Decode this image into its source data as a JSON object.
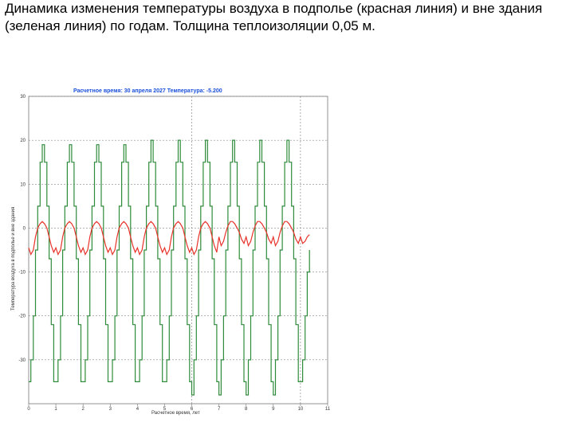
{
  "slide": {
    "title": "Динамика изменения температуры воздуха в подполье (красная линия) и вне здания (зеленая линия) по годам. Толщина теплоизоляции 0,05 м."
  },
  "chart_data": {
    "type": "line",
    "runtime_label": "Расчетное время: 30 апреля 2027  Температура: -5.200",
    "xlabel": "Расчетное время, лет",
    "ylabel": "Температура воздуха в подполье и вне здания",
    "xlim": [
      0,
      11
    ],
    "ylim": [
      -40,
      30
    ],
    "x_ticks": [
      "0",
      "1",
      "2",
      "3",
      "4",
      "5",
      "6",
      "7",
      "8",
      "9",
      "10",
      "11"
    ],
    "y_ticks": [
      "30",
      "20",
      "10",
      "0",
      "-10",
      "-20",
      "-30"
    ],
    "cursor_x": [
      6,
      10
    ],
    "colors": {
      "underground": "#e8332b",
      "outside": "#2e8b3a",
      "runtime": "#1a4fd8",
      "grid": "#888888"
    },
    "series": [
      {
        "name": "Температура воздуха в подполье",
        "color": "#e8332b",
        "x": [
          0,
          0.08,
          0.17,
          0.25,
          0.33,
          0.42,
          0.5,
          0.58,
          0.67,
          0.75,
          0.83,
          0.92,
          1,
          1.08,
          1.17,
          1.25,
          1.33,
          1.42,
          1.5,
          1.58,
          1.67,
          1.75,
          1.83,
          1.92,
          2,
          2.08,
          2.17,
          2.25,
          2.33,
          2.42,
          2.5,
          2.58,
          2.67,
          2.75,
          2.83,
          2.92,
          3,
          3.08,
          3.17,
          3.25,
          3.33,
          3.42,
          3.5,
          3.58,
          3.67,
          3.75,
          3.83,
          3.92,
          4,
          4.08,
          4.17,
          4.25,
          4.33,
          4.42,
          4.5,
          4.58,
          4.67,
          4.75,
          4.83,
          4.92,
          5,
          5.08,
          5.17,
          5.25,
          5.33,
          5.42,
          5.5,
          5.58,
          5.67,
          5.75,
          5.83,
          5.92,
          6,
          6.08,
          6.17,
          6.25,
          6.33,
          6.42,
          6.5,
          6.58,
          6.67,
          6.75,
          6.83,
          6.92,
          7,
          7.08,
          7.17,
          7.25,
          7.33,
          7.42,
          7.5,
          7.58,
          7.67,
          7.75,
          7.83,
          7.92,
          8,
          8.08,
          8.17,
          8.25,
          8.33,
          8.42,
          8.5,
          8.58,
          8.67,
          8.75,
          8.83,
          8.92,
          9,
          9.08,
          9.17,
          9.25,
          9.33,
          9.42,
          9.5,
          9.58,
          9.67,
          9.75,
          9.83,
          9.92,
          10,
          10.08,
          10.17,
          10.25,
          10.33
        ],
        "y": [
          -4.5,
          -6,
          -5,
          -2,
          0,
          1,
          1.5,
          1,
          0,
          -2,
          -4,
          -5.5,
          -4.5,
          -6,
          -5,
          -2,
          0,
          1,
          1.5,
          1,
          0,
          -2,
          -4,
          -5.5,
          -4.5,
          -6,
          -5,
          -2,
          0,
          1,
          1.5,
          1,
          0,
          -2,
          -4,
          -5.5,
          -4.5,
          -6,
          -5,
          -2,
          0,
          1,
          1.5,
          1,
          0,
          -2,
          -4,
          -5.5,
          -4.5,
          -6,
          -5,
          -2,
          0,
          1,
          1.5,
          1,
          0,
          -2,
          -4,
          -5.5,
          -4.5,
          -6,
          -5,
          -2,
          0,
          1,
          1.5,
          1,
          0,
          -2,
          -4,
          -5.5,
          -4.5,
          -6,
          -5,
          -2,
          0,
          1,
          1.5,
          1,
          0,
          -2,
          -4,
          -5.5,
          -2,
          -4,
          -3,
          -1,
          0.5,
          1.5,
          1.5,
          1,
          0,
          -1,
          -2.5,
          -3.5,
          -2,
          -4,
          -3,
          -1,
          0.5,
          1.5,
          1.5,
          1,
          0,
          -1,
          -2.5,
          -3.5,
          -2,
          -4,
          -3,
          -1,
          0.5,
          1.5,
          1.5,
          1,
          0,
          -1,
          -2.5,
          -3.5,
          -2,
          -3.5,
          -3,
          -2,
          -1.5
        ]
      },
      {
        "name": "Температура воздуха вне здания",
        "color": "#2e8b3a",
        "x": [
          0,
          0.08,
          0.17,
          0.25,
          0.33,
          0.42,
          0.5,
          0.58,
          0.67,
          0.75,
          0.83,
          0.92,
          1,
          1.08,
          1.17,
          1.25,
          1.33,
          1.42,
          1.5,
          1.58,
          1.67,
          1.75,
          1.83,
          1.92,
          2,
          2.08,
          2.17,
          2.25,
          2.33,
          2.42,
          2.5,
          2.58,
          2.67,
          2.75,
          2.83,
          2.92,
          3,
          3.08,
          3.17,
          3.25,
          3.33,
          3.42,
          3.5,
          3.58,
          3.67,
          3.75,
          3.83,
          3.92,
          4,
          4.08,
          4.17,
          4.25,
          4.33,
          4.42,
          4.5,
          4.58,
          4.67,
          4.75,
          4.83,
          4.92,
          5,
          5.08,
          5.17,
          5.25,
          5.33,
          5.42,
          5.5,
          5.58,
          5.67,
          5.75,
          5.83,
          5.92,
          6,
          6.08,
          6.17,
          6.25,
          6.33,
          6.42,
          6.5,
          6.58,
          6.67,
          6.75,
          6.83,
          6.92,
          7,
          7.08,
          7.17,
          7.25,
          7.33,
          7.42,
          7.5,
          7.58,
          7.67,
          7.75,
          7.83,
          7.92,
          8,
          8.08,
          8.17,
          8.25,
          8.33,
          8.42,
          8.5,
          8.58,
          8.67,
          8.75,
          8.83,
          8.92,
          9,
          9.08,
          9.17,
          9.25,
          9.33,
          9.42,
          9.5,
          9.58,
          9.67,
          9.75,
          9.83,
          9.92,
          10,
          10.08,
          10.17,
          10.25,
          10.33
        ],
        "y": [
          -35,
          -30,
          -20,
          -5,
          5,
          15,
          19,
          15,
          5,
          -7,
          -22,
          -35,
          -35,
          -30,
          -20,
          -5,
          5,
          15,
          19,
          15,
          5,
          -7,
          -22,
          -35,
          -35,
          -30,
          -20,
          -5,
          5,
          15,
          19,
          15,
          5,
          -7,
          -22,
          -35,
          -35,
          -30,
          -20,
          -5,
          5,
          15,
          19,
          15,
          5,
          -7,
          -22,
          -35,
          -35,
          -30,
          -20,
          -5,
          5,
          15,
          20,
          15,
          5,
          -7,
          -22,
          -35,
          -35,
          -30,
          -20,
          -5,
          5,
          15,
          20,
          15,
          5,
          -7,
          -22,
          -35,
          -38,
          -30,
          -20,
          -5,
          5,
          15,
          20,
          15,
          5,
          -7,
          -22,
          -35,
          -38,
          -30,
          -20,
          -5,
          5,
          15,
          20,
          15,
          5,
          -7,
          -22,
          -35,
          -38,
          -30,
          -20,
          -5,
          5,
          15,
          20,
          15,
          5,
          -7,
          -22,
          -35,
          -38,
          -30,
          -20,
          -5,
          5,
          15,
          20,
          15,
          5,
          -7,
          -22,
          -35,
          -35,
          -30,
          -20,
          -10,
          -5
        ]
      }
    ]
  }
}
